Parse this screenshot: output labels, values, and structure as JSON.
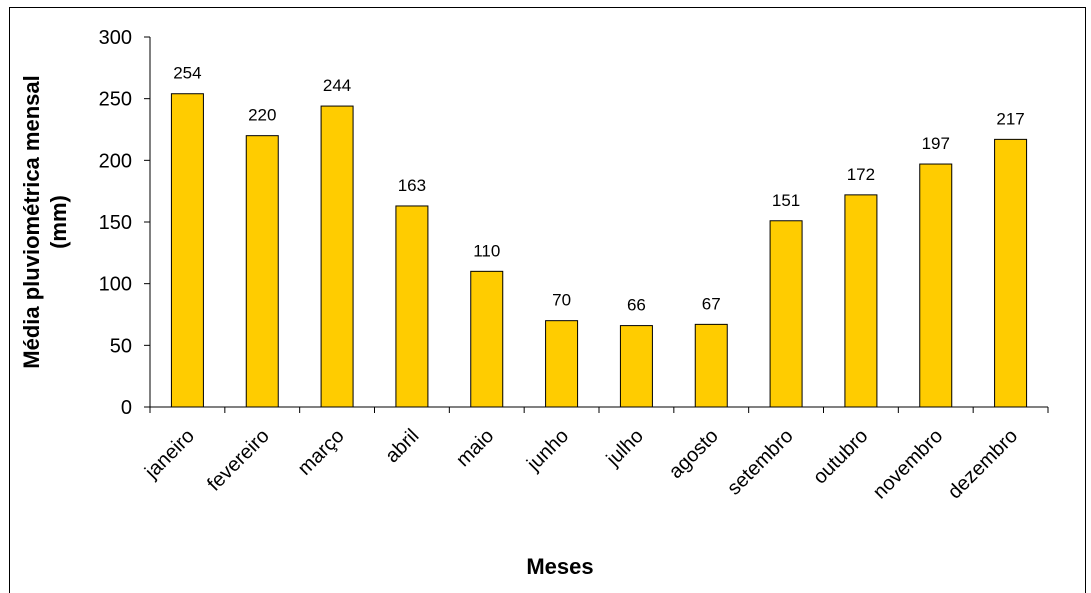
{
  "chart_data": {
    "type": "bar",
    "title": "",
    "xlabel": "Meses",
    "ylabel": [
      "Média pluviométrica mensal",
      "(mm)"
    ],
    "ylim": [
      0,
      300
    ],
    "yticks": [
      0,
      50,
      100,
      150,
      200,
      250,
      300
    ],
    "categories": [
      "janeiro",
      "fevereiro",
      "março",
      "abril",
      "maio",
      "junho",
      "julho",
      "agosto",
      "setembro",
      "outubro",
      "novembro",
      "dezembro"
    ],
    "values": [
      254,
      220,
      244,
      163,
      110,
      70,
      66,
      67,
      151,
      172,
      197,
      217
    ],
    "data_labels": [
      "254",
      "220",
      "244",
      "163",
      "110",
      "70",
      "66",
      "67",
      "151",
      "172",
      "197",
      "217"
    ],
    "bar_color": "#FFCC00",
    "bar_edge_color": "#000000",
    "grid": false,
    "legend": "none"
  }
}
